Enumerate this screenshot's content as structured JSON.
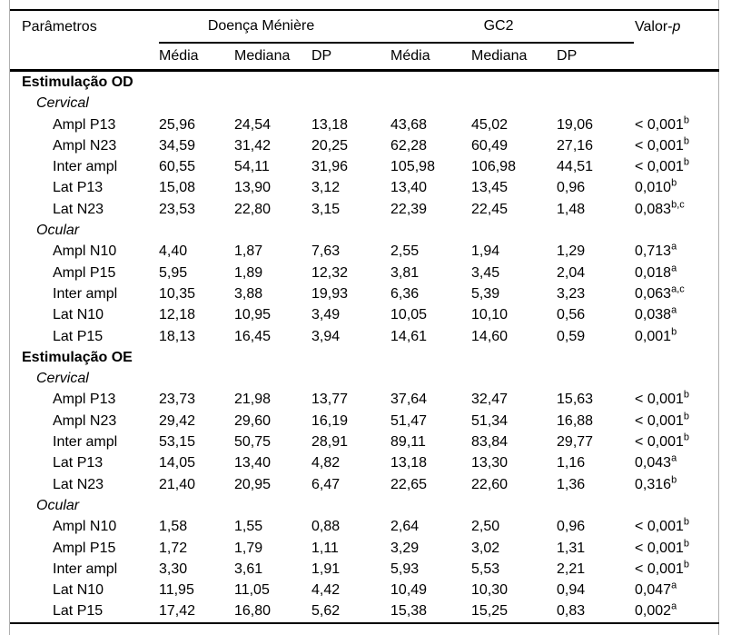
{
  "colors": {
    "background": "#ffffff",
    "text": "#000000",
    "rule": "#000000",
    "frame_edge": "#b0b0b0"
  },
  "table": {
    "header": {
      "param_label": "Parâmetros",
      "group1": "Doença Ménière",
      "group2": "GC2",
      "pvalue_prefix": "Valor-",
      "pvalue_italic": "p",
      "subheaders": [
        "Média",
        "Mediana",
        "DP",
        "Média",
        "Mediana",
        "DP"
      ]
    },
    "sections": [
      {
        "title": "Estimulação OD",
        "subsections": [
          {
            "title": "Cervical",
            "rows": [
              {
                "param": "Ampl P13",
                "values": [
                  "25,96",
                  "24,54",
                  "13,18",
                  "43,68",
                  "45,02",
                  "19,06"
                ],
                "p": "< 0,001",
                "p_sup": "b"
              },
              {
                "param": "Ampl N23",
                "values": [
                  "34,59",
                  "31,42",
                  "20,25",
                  "62,28",
                  "60,49",
                  "27,16"
                ],
                "p": "< 0,001",
                "p_sup": "b"
              },
              {
                "param": "Inter ampl",
                "values": [
                  "60,55",
                  "54,11",
                  "31,96",
                  "105,98",
                  "106,98",
                  "44,51"
                ],
                "p": "< 0,001",
                "p_sup": "b"
              },
              {
                "param": "Lat P13",
                "values": [
                  "15,08",
                  "13,90",
                  "3,12",
                  "13,40",
                  "13,45",
                  "0,96"
                ],
                "p": "0,010",
                "p_sup": "b"
              },
              {
                "param": "Lat N23",
                "values": [
                  "23,53",
                  "22,80",
                  "3,15",
                  "22,39",
                  "22,45",
                  "1,48"
                ],
                "p": "0,083",
                "p_sup": "b,c"
              }
            ]
          },
          {
            "title": "Ocular",
            "rows": [
              {
                "param": "Ampl N10",
                "values": [
                  "4,40",
                  "1,87",
                  "7,63",
                  "2,55",
                  "1,94",
                  "1,29"
                ],
                "p": "0,713",
                "p_sup": "a"
              },
              {
                "param": "Ampl P15",
                "values": [
                  "5,95",
                  "1,89",
                  "12,32",
                  "3,81",
                  "3,45",
                  "2,04"
                ],
                "p": "0,018",
                "p_sup": "a"
              },
              {
                "param": "Inter ampl",
                "values": [
                  "10,35",
                  "3,88",
                  "19,93",
                  "6,36",
                  "5,39",
                  "3,23"
                ],
                "p": "0,063",
                "p_sup": "a,c"
              },
              {
                "param": "Lat N10",
                "values": [
                  "12,18",
                  "10,95",
                  "3,49",
                  "10,05",
                  "10,10",
                  "0,56"
                ],
                "p": "0,038",
                "p_sup": "a"
              },
              {
                "param": "Lat P15",
                "values": [
                  "18,13",
                  "16,45",
                  "3,94",
                  "14,61",
                  "14,60",
                  "0,59"
                ],
                "p": "0,001",
                "p_sup": "b"
              }
            ]
          }
        ]
      },
      {
        "title": "Estimulação OE",
        "subsections": [
          {
            "title": "Cervical",
            "rows": [
              {
                "param": "Ampl P13",
                "values": [
                  "23,73",
                  "21,98",
                  "13,77",
                  "37,64",
                  "32,47",
                  "15,63"
                ],
                "p": "< 0,001",
                "p_sup": "b"
              },
              {
                "param": "Ampl N23",
                "values": [
                  "29,42",
                  "29,60",
                  "16,19",
                  "51,47",
                  "51,34",
                  "16,88"
                ],
                "p": "< 0,001",
                "p_sup": "b"
              },
              {
                "param": "Inter ampl",
                "values": [
                  "53,15",
                  "50,75",
                  "28,91",
                  "89,11",
                  "83,84",
                  "29,77"
                ],
                "p": "< 0,001",
                "p_sup": "b"
              },
              {
                "param": "Lat P13",
                "values": [
                  "14,05",
                  "13,40",
                  "4,82",
                  "13,18",
                  "13,30",
                  "1,16"
                ],
                "p": "0,043",
                "p_sup": "a"
              },
              {
                "param": "Lat N23",
                "values": [
                  "21,40",
                  "20,95",
                  "6,47",
                  "22,65",
                  "22,60",
                  "1,36"
                ],
                "p": "0,316",
                "p_sup": "b"
              }
            ]
          },
          {
            "title": "Ocular",
            "rows": [
              {
                "param": "Ampl N10",
                "values": [
                  "1,58",
                  "1,55",
                  "0,88",
                  "2,64",
                  "2,50",
                  "0,96"
                ],
                "p": "< 0,001",
                "p_sup": "b"
              },
              {
                "param": "Ampl P15",
                "values": [
                  "1,72",
                  "1,79",
                  "1,11",
                  "3,29",
                  "3,02",
                  "1,31"
                ],
                "p": "< 0,001",
                "p_sup": "b"
              },
              {
                "param": "Inter ampl",
                "values": [
                  "3,30",
                  "3,61",
                  "1,91",
                  "5,93",
                  "5,53",
                  "2,21"
                ],
                "p": "< 0,001",
                "p_sup": "b"
              },
              {
                "param": "Lat N10",
                "values": [
                  "11,95",
                  "11,05",
                  "4,42",
                  "10,49",
                  "10,30",
                  "0,94"
                ],
                "p": "0,047",
                "p_sup": "a"
              },
              {
                "param": "Lat P15",
                "values": [
                  "17,42",
                  "16,80",
                  "5,62",
                  "15,38",
                  "15,25",
                  "0,83"
                ],
                "p": "0,002",
                "p_sup": "a"
              }
            ]
          }
        ]
      }
    ]
  }
}
